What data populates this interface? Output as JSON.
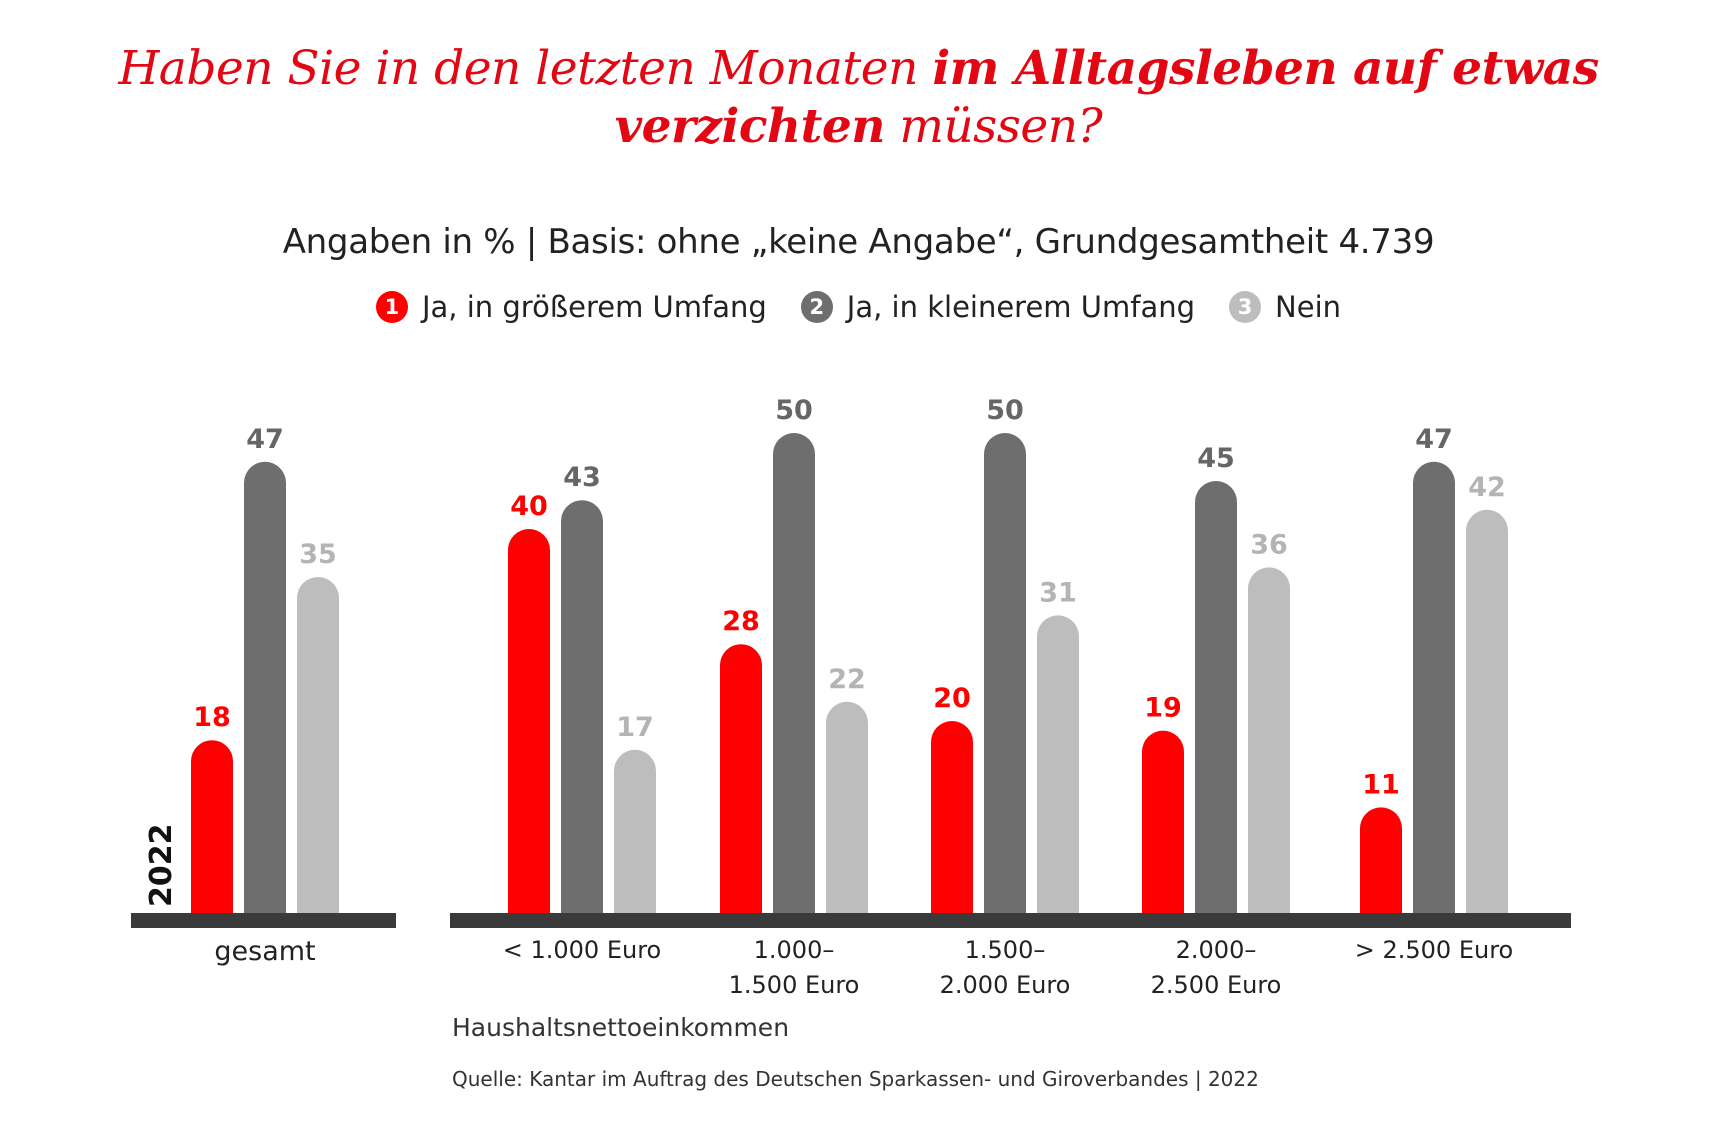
{
  "title": {
    "part1": "Haben Sie in den letzten Monaten ",
    "bold1": "im Alltagsleben auf etwas",
    "bold2": "verzichten",
    "part2": " müssen?"
  },
  "subtitle": "Angaben in % | Basis: ohne „keine Angabe“, Grundgesamtheit 4.739",
  "legend": [
    {
      "num": "1",
      "label": "Ja, in größerem Umfang",
      "color": "#ff0000"
    },
    {
      "num": "2",
      "label": "Ja, in kleinerem Umfang",
      "color": "#6e6e6e"
    },
    {
      "num": "3",
      "label": "Nein",
      "color": "#bdbdbd"
    }
  ],
  "chart_data": {
    "type": "bar",
    "year_label": "2022",
    "series": [
      {
        "name": "Ja, in größerem Umfang",
        "color": "#ff0000"
      },
      {
        "name": "Ja, in kleinerem Umfang",
        "color": "#6e6e6e"
      },
      {
        "name": "Nein",
        "color": "#bdbdbd"
      }
    ],
    "groups": [
      {
        "label": [
          "gesamt"
        ],
        "values": [
          18,
          47,
          35
        ]
      },
      {
        "label": [
          "< 1.000 Euro"
        ],
        "values": [
          40,
          43,
          17
        ]
      },
      {
        "label": [
          "1.000–",
          "1.500 Euro"
        ],
        "values": [
          28,
          50,
          22
        ]
      },
      {
        "label": [
          "1.500–",
          "2.000 Euro"
        ],
        "values": [
          20,
          50,
          31
        ]
      },
      {
        "label": [
          "2.000–",
          "2.500 Euro"
        ],
        "values": [
          19,
          45,
          36
        ]
      },
      {
        "label": [
          "> 2.500 Euro"
        ],
        "values": [
          11,
          47,
          42
        ]
      }
    ],
    "label_colors": [
      "#ff0000",
      "#666666",
      "#b4b4b4"
    ]
  },
  "footer_label": "Haushaltsnettoeinkommen",
  "source": "Quelle: Kantar im Auftrag des Deutschen Sparkassen- und Giroverbandes | 2022"
}
